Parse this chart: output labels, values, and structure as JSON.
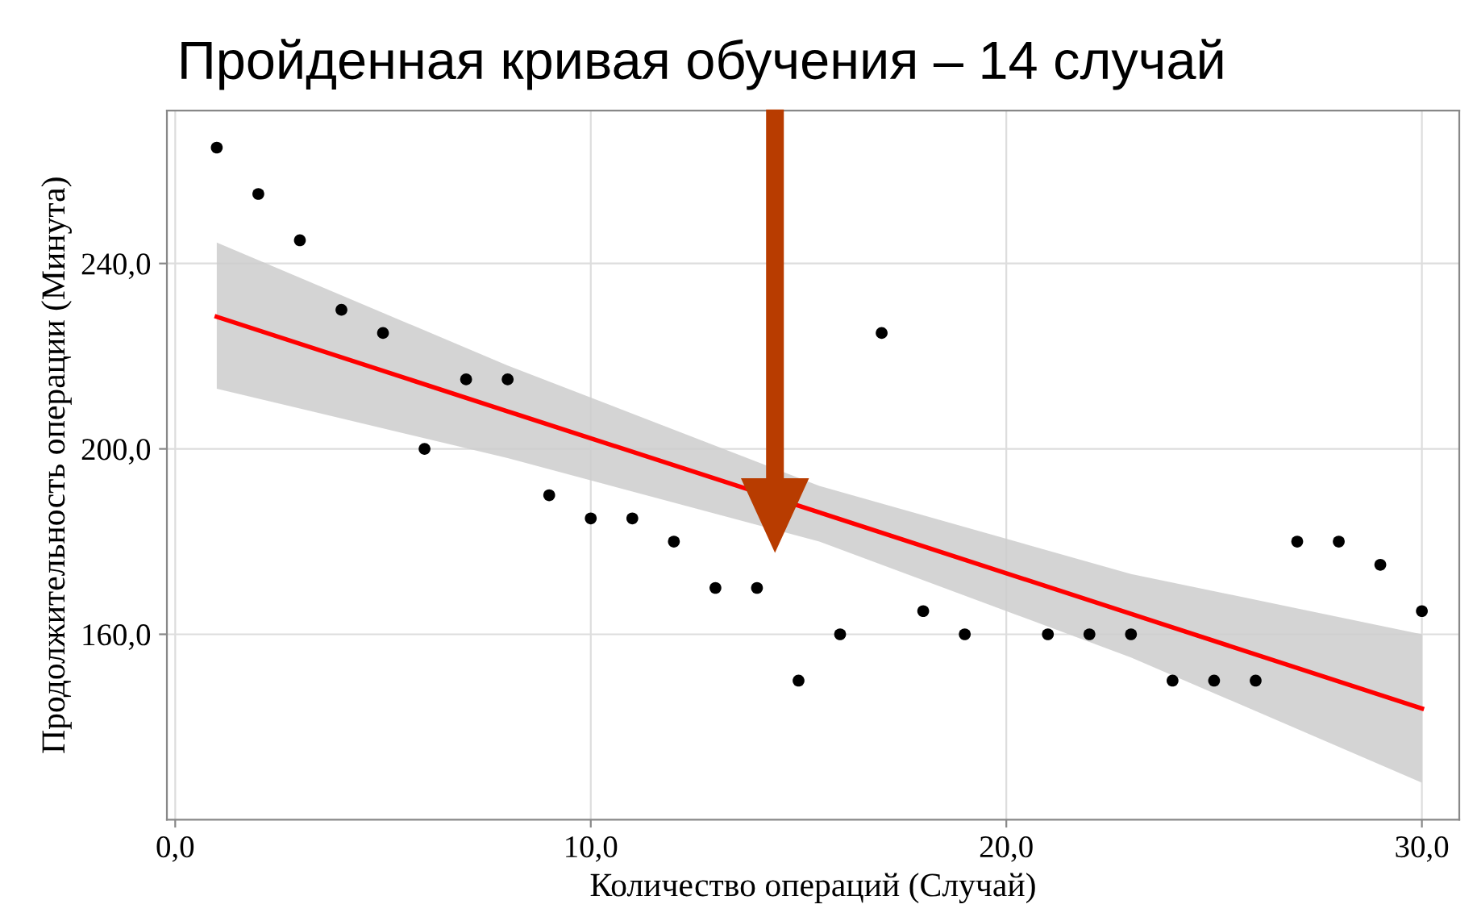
{
  "chart_data": {
    "type": "scatter",
    "title": "Пройденная кривая обучения – 14 случай",
    "xlabel": "Количество операций (Случай)",
    "ylabel": "Продолжительность операции (Минута)",
    "series": [
      {
        "color": "#000000",
        "marker": "circle",
        "x": [
          1,
          2,
          3,
          4,
          5,
          6,
          7,
          8,
          9,
          10,
          11,
          12,
          13,
          14,
          15,
          16,
          17,
          18,
          19,
          21,
          22,
          23,
          24,
          25,
          26,
          27,
          28,
          29,
          30
        ],
        "values": [
          265,
          255,
          245,
          230,
          225,
          200,
          215,
          215,
          190,
          185,
          185,
          180,
          170,
          170,
          150,
          160,
          225,
          165,
          160,
          160,
          160,
          160,
          150,
          150,
          150,
          180,
          180,
          175,
          165
        ]
      },
      {
        "type": "line",
        "color": "#ff0000",
        "x": [
          1,
          8,
          15.5,
          23,
          30
        ],
        "values": [
          228.5,
          208.1,
          186.3,
          164.4,
          144
        ],
        "lower": [
          213,
          198,
          180,
          155,
          128
        ],
        "upper": [
          244.5,
          218,
          192,
          173,
          160
        ]
      }
    ],
    "xlim": [
      -0.2,
      30.9
    ],
    "ylim": [
      120,
      273
    ],
    "xticks": [
      {
        "value": 0,
        "label": "0,0"
      },
      {
        "value": 10,
        "label": "10,0"
      },
      {
        "value": 20,
        "label": "20,0"
      },
      {
        "value": 30,
        "label": "30,0"
      }
    ],
    "yticks": [
      {
        "value": 160,
        "label": "160,0"
      },
      {
        "value": 200,
        "label": "200,0"
      },
      {
        "value": 240,
        "label": "240,0"
      }
    ],
    "grid": true
  }
}
